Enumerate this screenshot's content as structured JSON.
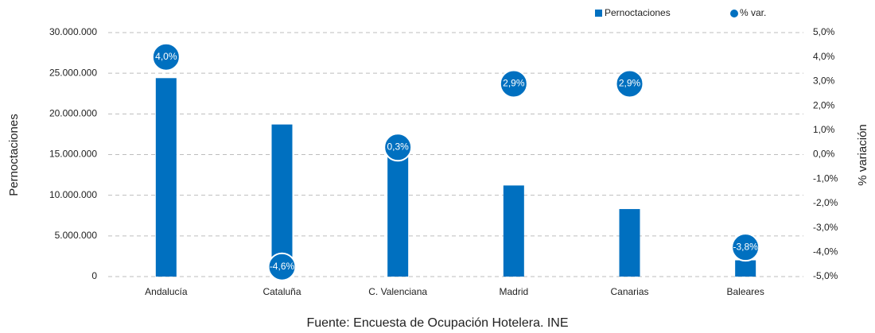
{
  "chart_data": {
    "type": "bar",
    "categories": [
      "Andalucía",
      "Cataluña",
      "C. Valenciana",
      "Madrid",
      "Canarias",
      "Baleares"
    ],
    "series": [
      {
        "name": "Pernoctaciones",
        "type": "bar",
        "color": "#0070c0",
        "values": [
          24400000,
          18700000,
          15700000,
          11200000,
          8300000,
          2000000
        ]
      },
      {
        "name": "% var.",
        "type": "scatter",
        "color": "#0070c0",
        "axis": "y2",
        "values": [
          4.0,
          -4.6,
          0.3,
          2.9,
          2.9,
          -3.8
        ],
        "value_labels": [
          "4,0%",
          "-4,6%",
          "0,3%",
          "2,9%",
          "2,9%",
          "-3,8%"
        ]
      }
    ],
    "ylabel": "Pernoctaciones",
    "y2label": "% variación",
    "ylim": [
      0,
      30000000
    ],
    "yticks": [
      0,
      {
        "value": 5000000,
        "label": "5.000.000"
      },
      {
        "value": 10000000,
        "label": "10.000.000"
      },
      {
        "value": 15000000,
        "label": "15.000.000"
      },
      {
        "value": 20000000,
        "label": "20.000.000"
      },
      {
        "value": 25000000,
        "label": "25.000.000"
      },
      {
        "value": 30000000,
        "label": "30.000.000"
      }
    ],
    "y2lim": [
      -5,
      5
    ],
    "y2ticks": [
      {
        "value": -5,
        "label": "-5,0%"
      },
      {
        "value": -4,
        "label": "-4,0%"
      },
      {
        "value": -3,
        "label": "-3,0%"
      },
      {
        "value": -2,
        "label": "-2,0%"
      },
      {
        "value": -1,
        "label": "-1,0%"
      },
      {
        "value": 0,
        "label": "0,0%"
      },
      {
        "value": 1,
        "label": "1,0%"
      },
      {
        "value": 2,
        "label": "2,0%"
      },
      {
        "value": 3,
        "label": "3,0%"
      },
      {
        "value": 4,
        "label": "4,0%"
      },
      {
        "value": 5,
        "label": "5,0%"
      }
    ],
    "grid": true,
    "legend": "top-right",
    "source": "Fuente: Encuesta de Ocupación Hotelera. INE"
  }
}
